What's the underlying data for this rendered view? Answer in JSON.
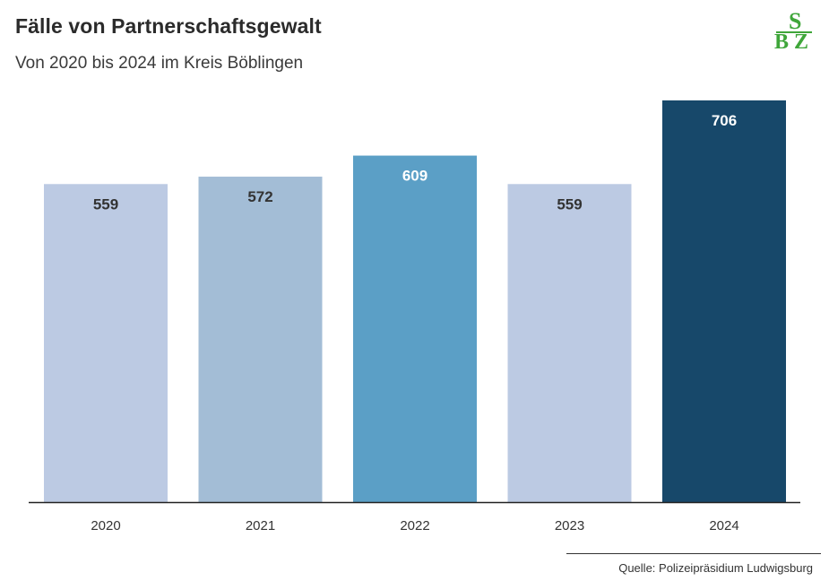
{
  "header": {
    "title": "Fälle von Partnerschaftsgewalt",
    "subtitle": "Von 2020 bis 2024 im Kreis Böblingen"
  },
  "logo": {
    "text": "SBZ",
    "color": "#3fa63a"
  },
  "source": {
    "text": "Quelle: Polizeipräsidium Ludwigsburg"
  },
  "chart_data": {
    "type": "bar",
    "title": "Fälle von Partnerschaftsgewalt",
    "subtitle": "Von 2020 bis 2024 im Kreis Böblingen",
    "categories": [
      "2020",
      "2021",
      "2022",
      "2023",
      "2024"
    ],
    "values": [
      559,
      572,
      609,
      559,
      706
    ],
    "value_labels": [
      "559",
      "572",
      "609",
      "559",
      "706"
    ],
    "ylim": [
      0,
      706
    ],
    "grid": false,
    "legend": "none",
    "bar_colors": [
      "#bccae3",
      "#a3bdd6",
      "#5b9fc6",
      "#bccae3",
      "#17486a"
    ],
    "label_colors": [
      "#333333",
      "#333333",
      "#ffffff",
      "#333333",
      "#ffffff"
    ],
    "axis_color": "#222222"
  }
}
